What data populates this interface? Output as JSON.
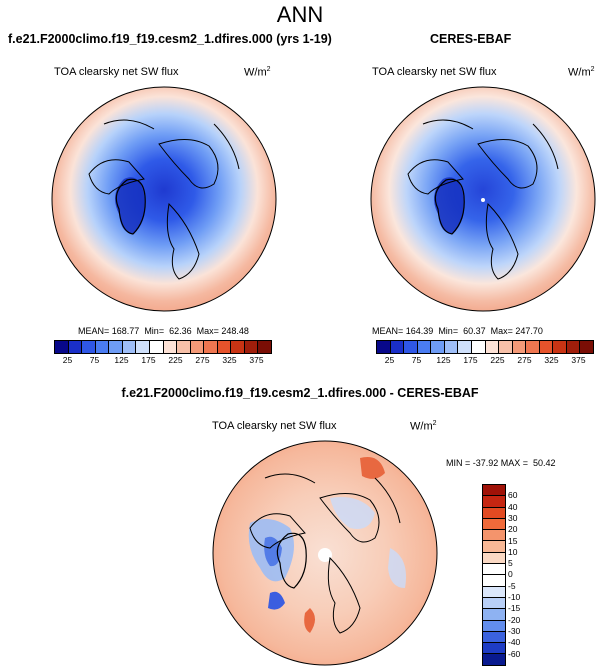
{
  "title": "ANN",
  "panel_left": {
    "case": "f.e21.F2000climo.f19_f19.cesm2_1.dfires.000 (yrs 1-19)",
    "variable": "TOA clearsky net SW flux",
    "units": "W/m",
    "units_exp": "2",
    "mean_label": "MEAN= 168.77",
    "min_label": "Min=  62.36",
    "max_label": "Max= 248.48"
  },
  "panel_right": {
    "case": "CERES-EBAF",
    "variable": "TOA clearsky net SW flux",
    "units": "W/m",
    "units_exp": "2",
    "mean_label": "MEAN= 164.39",
    "min_label": "Min=  60.37",
    "max_label": "Max= 247.70"
  },
  "panel_diff": {
    "case": "f.e21.F2000climo.f19_f19.cesm2_1.dfires.000 - CERES-EBAF",
    "variable": "TOA clearsky net SW flux",
    "units": "W/m",
    "units_exp": "2",
    "minmax_label": "MIN = -37.92 MAX =  50.42"
  },
  "colorbar_main": {
    "ticks": [
      "25",
      "75",
      "125",
      "175",
      "225",
      "275",
      "325",
      "375"
    ],
    "colors": [
      "#08088a",
      "#1a2fc8",
      "#2f57e6",
      "#4a7cf2",
      "#6e9cf5",
      "#9ebef8",
      "#cfe0fb",
      "#ffffff",
      "#fde2d6",
      "#f7c0a8",
      "#f49a78",
      "#ef7650",
      "#e6532b",
      "#c93414",
      "#a01e0b",
      "#7a0e05"
    ]
  },
  "colorbar_diff": {
    "ticks": [
      "60",
      "40",
      "30",
      "20",
      "15",
      "10",
      "5",
      "0",
      "-5",
      "-10",
      "-15",
      "-20",
      "-30",
      "-40",
      "-60"
    ],
    "colors": [
      "#a01208",
      "#c52612",
      "#e24a22",
      "#f06a3a",
      "#f4946c",
      "#f8b896",
      "#fbd9c4",
      "#ffffff",
      "#ffffff",
      "#dbe7fb",
      "#b8cff7",
      "#8eb2f2",
      "#628ded",
      "#3b62de",
      "#1e3cc4",
      "#091a8f"
    ]
  }
}
